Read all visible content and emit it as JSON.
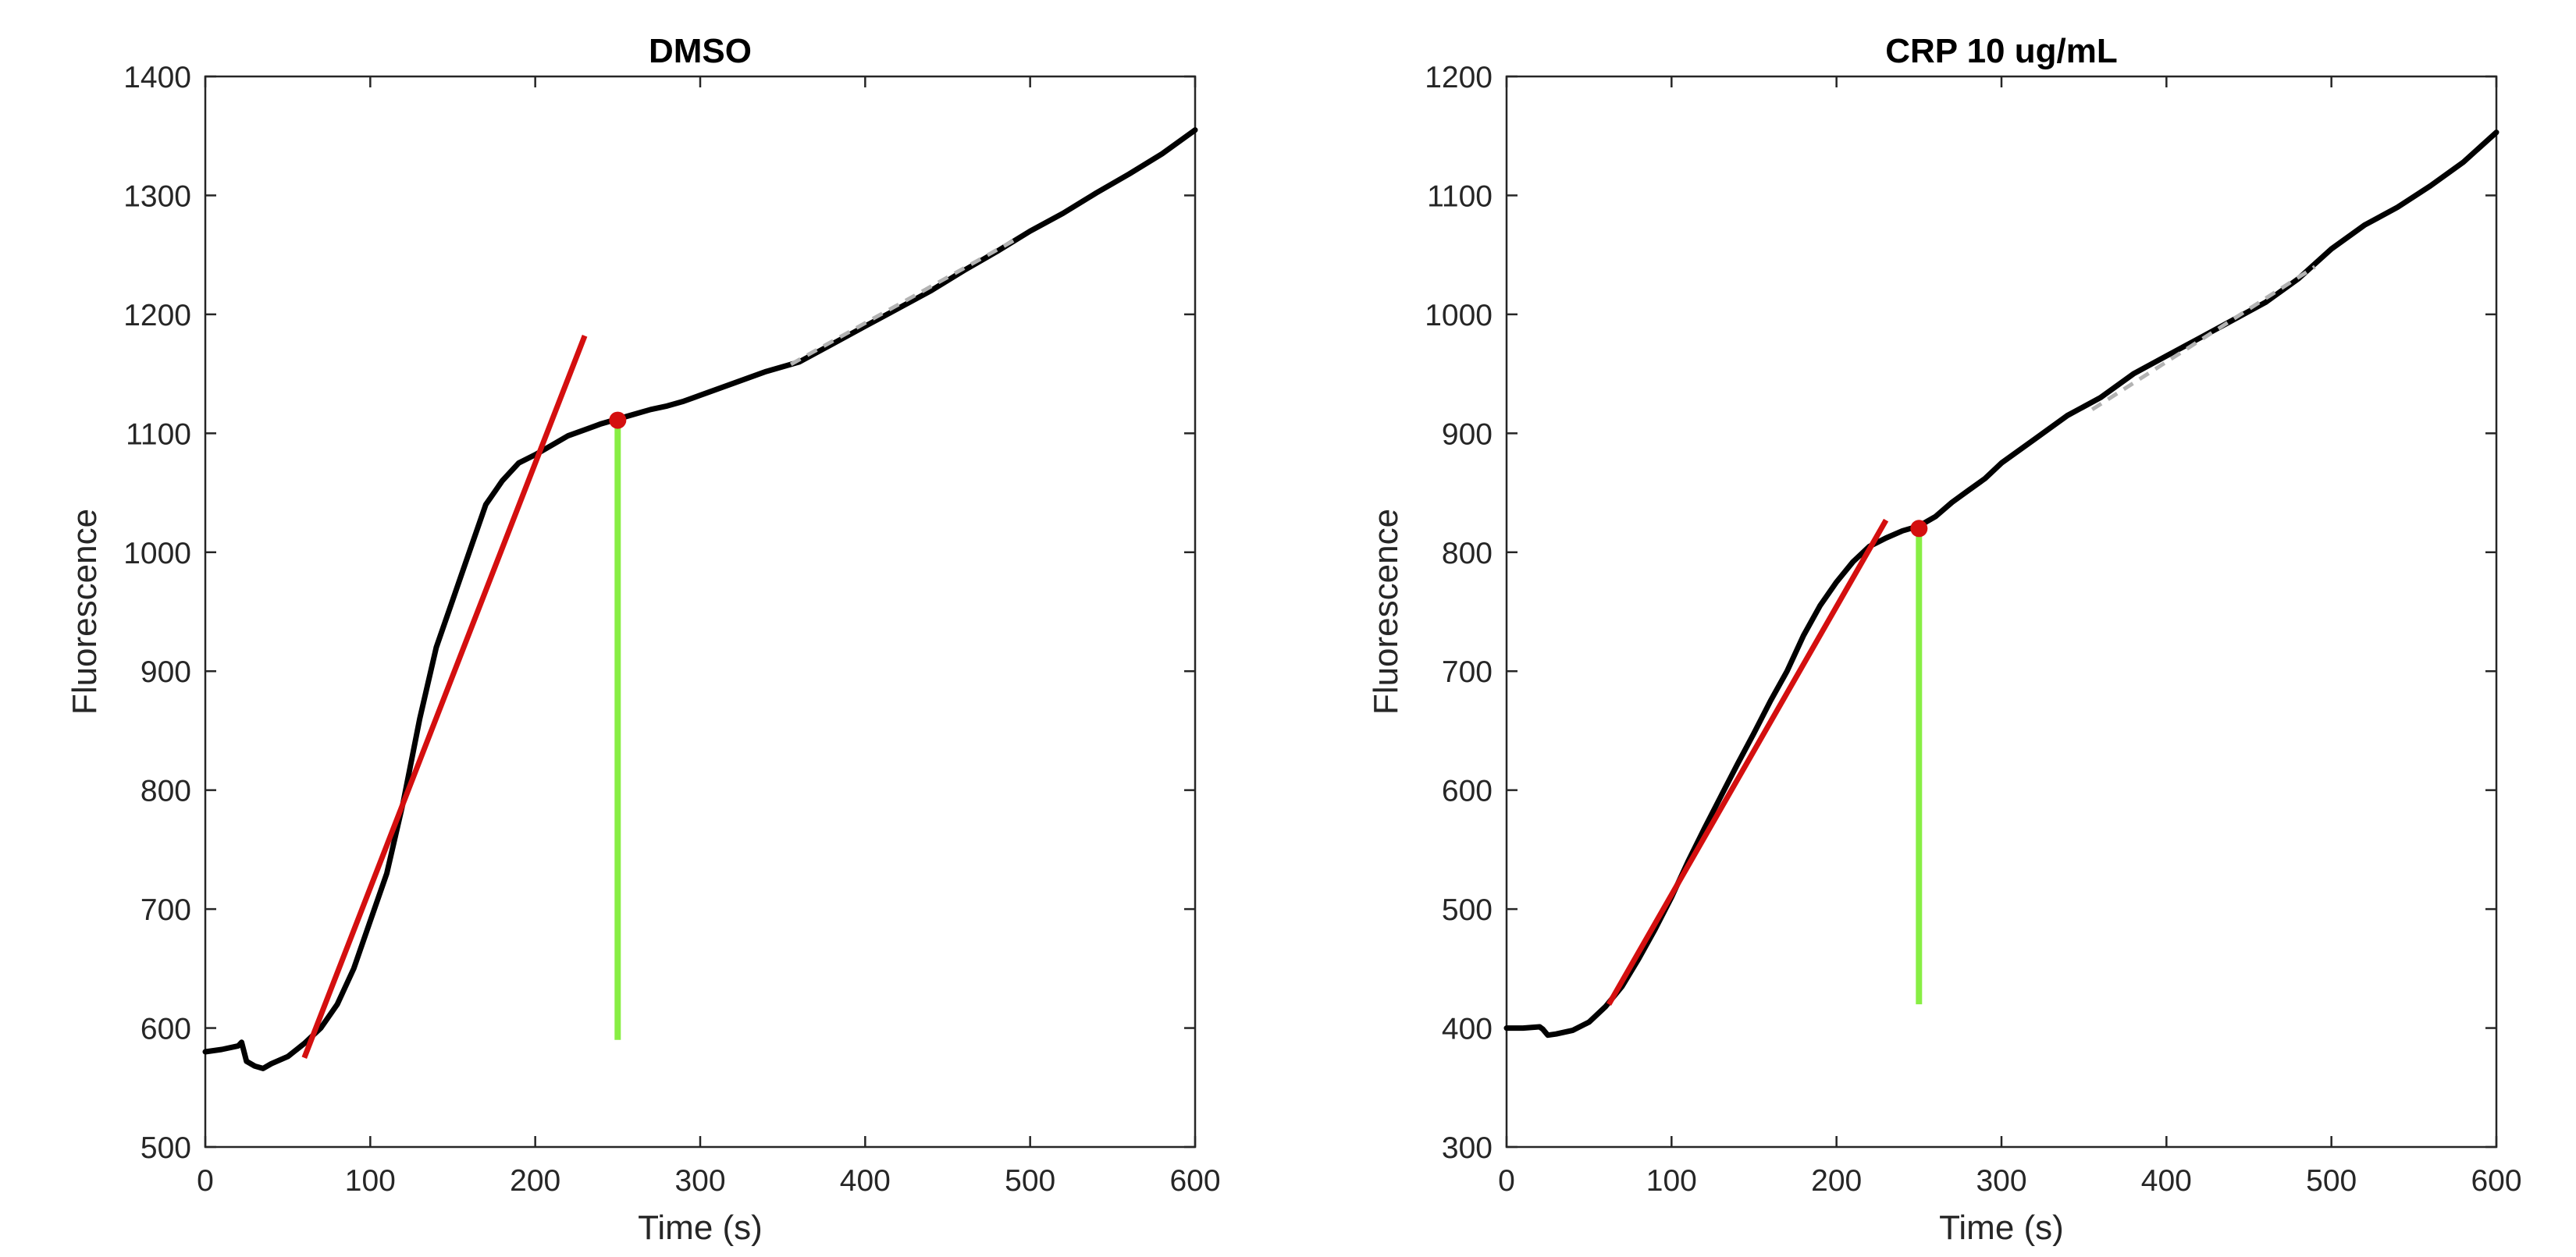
{
  "colors": {
    "trace": "#000000",
    "fit": "#d40f0f",
    "marker_line": "#88ee44",
    "late_fit": "#b3b3b3",
    "axis": "#262626"
  },
  "chart_data": [
    {
      "type": "line",
      "title": "DMSO",
      "xlabel": "Time (s)",
      "ylabel": "Fluorescence",
      "xlim": [
        0,
        600
      ],
      "ylim": [
        500,
        1400
      ],
      "xticks": [
        0,
        100,
        200,
        300,
        400,
        500,
        600
      ],
      "yticks": [
        500,
        600,
        700,
        800,
        900,
        1000,
        1100,
        1200,
        1300,
        1400
      ],
      "grid": false,
      "legend": "none",
      "series": [
        {
          "role": "trace",
          "x": [
            0,
            10,
            20,
            22,
            25,
            30,
            35,
            40,
            50,
            60,
            70,
            80,
            90,
            100,
            110,
            120,
            130,
            140,
            150,
            160,
            170,
            180,
            190,
            200,
            210,
            220,
            230,
            240,
            250,
            260,
            270,
            280,
            290,
            300,
            320,
            340,
            360,
            380,
            400,
            420,
            440,
            460,
            480,
            500,
            520,
            540,
            560,
            580,
            600
          ],
          "y": [
            580,
            582,
            585,
            588,
            572,
            568,
            566,
            570,
            576,
            587,
            600,
            620,
            650,
            690,
            730,
            790,
            860,
            920,
            960,
            1000,
            1040,
            1060,
            1075,
            1082,
            1090,
            1098,
            1103,
            1108,
            1112,
            1116,
            1120,
            1123,
            1127,
            1132,
            1142,
            1152,
            1160,
            1175,
            1190,
            1205,
            1220,
            1237,
            1253,
            1270,
            1285,
            1302,
            1318,
            1335,
            1355
          ]
        },
        {
          "role": "initial-slope-fit",
          "x": [
            60,
            230
          ],
          "y": [
            575,
            1182
          ]
        },
        {
          "role": "plateau-point",
          "x": [
            250
          ],
          "y": [
            1111
          ]
        },
        {
          "role": "time-marker",
          "x": [
            250,
            250
          ],
          "y": [
            590,
            1111
          ]
        },
        {
          "role": "late-slope-fit",
          "x": [
            355,
            490
          ],
          "y": [
            1158,
            1262
          ]
        }
      ]
    },
    {
      "type": "line",
      "title": "CRP 10 ug/mL",
      "xlabel": "Time (s)",
      "ylabel": "Fluorescence",
      "xlim": [
        0,
        600
      ],
      "ylim": [
        300,
        1200
      ],
      "xticks": [
        0,
        100,
        200,
        300,
        400,
        500,
        600
      ],
      "yticks": [
        300,
        400,
        500,
        600,
        700,
        800,
        900,
        1000,
        1100,
        1200
      ],
      "grid": false,
      "legend": "none",
      "series": [
        {
          "role": "trace",
          "x": [
            0,
            10,
            20,
            22,
            25,
            30,
            40,
            50,
            60,
            70,
            80,
            90,
            100,
            110,
            120,
            130,
            140,
            150,
            160,
            170,
            180,
            190,
            200,
            210,
            220,
            230,
            240,
            250,
            260,
            270,
            280,
            290,
            300,
            320,
            340,
            360,
            380,
            400,
            420,
            440,
            460,
            480,
            500,
            520,
            540,
            560,
            580,
            600
          ],
          "y": [
            400,
            400,
            401,
            399,
            394,
            395,
            398,
            405,
            418,
            435,
            458,
            483,
            510,
            540,
            568,
            595,
            622,
            648,
            675,
            700,
            730,
            755,
            775,
            792,
            805,
            812,
            818,
            822,
            830,
            842,
            852,
            862,
            875,
            895,
            915,
            930,
            950,
            965,
            980,
            995,
            1010,
            1030,
            1055,
            1075,
            1090,
            1108,
            1128,
            1153
          ]
        },
        {
          "role": "initial-slope-fit",
          "x": [
            62,
            230
          ],
          "y": [
            420,
            827
          ]
        },
        {
          "role": "plateau-point",
          "x": [
            250
          ],
          "y": [
            820
          ]
        },
        {
          "role": "time-marker",
          "x": [
            250,
            250
          ],
          "y": [
            420,
            820
          ]
        },
        {
          "role": "late-slope-fit",
          "x": [
            355,
            490
          ],
          "y": [
            920,
            1040
          ]
        }
      ]
    }
  ]
}
